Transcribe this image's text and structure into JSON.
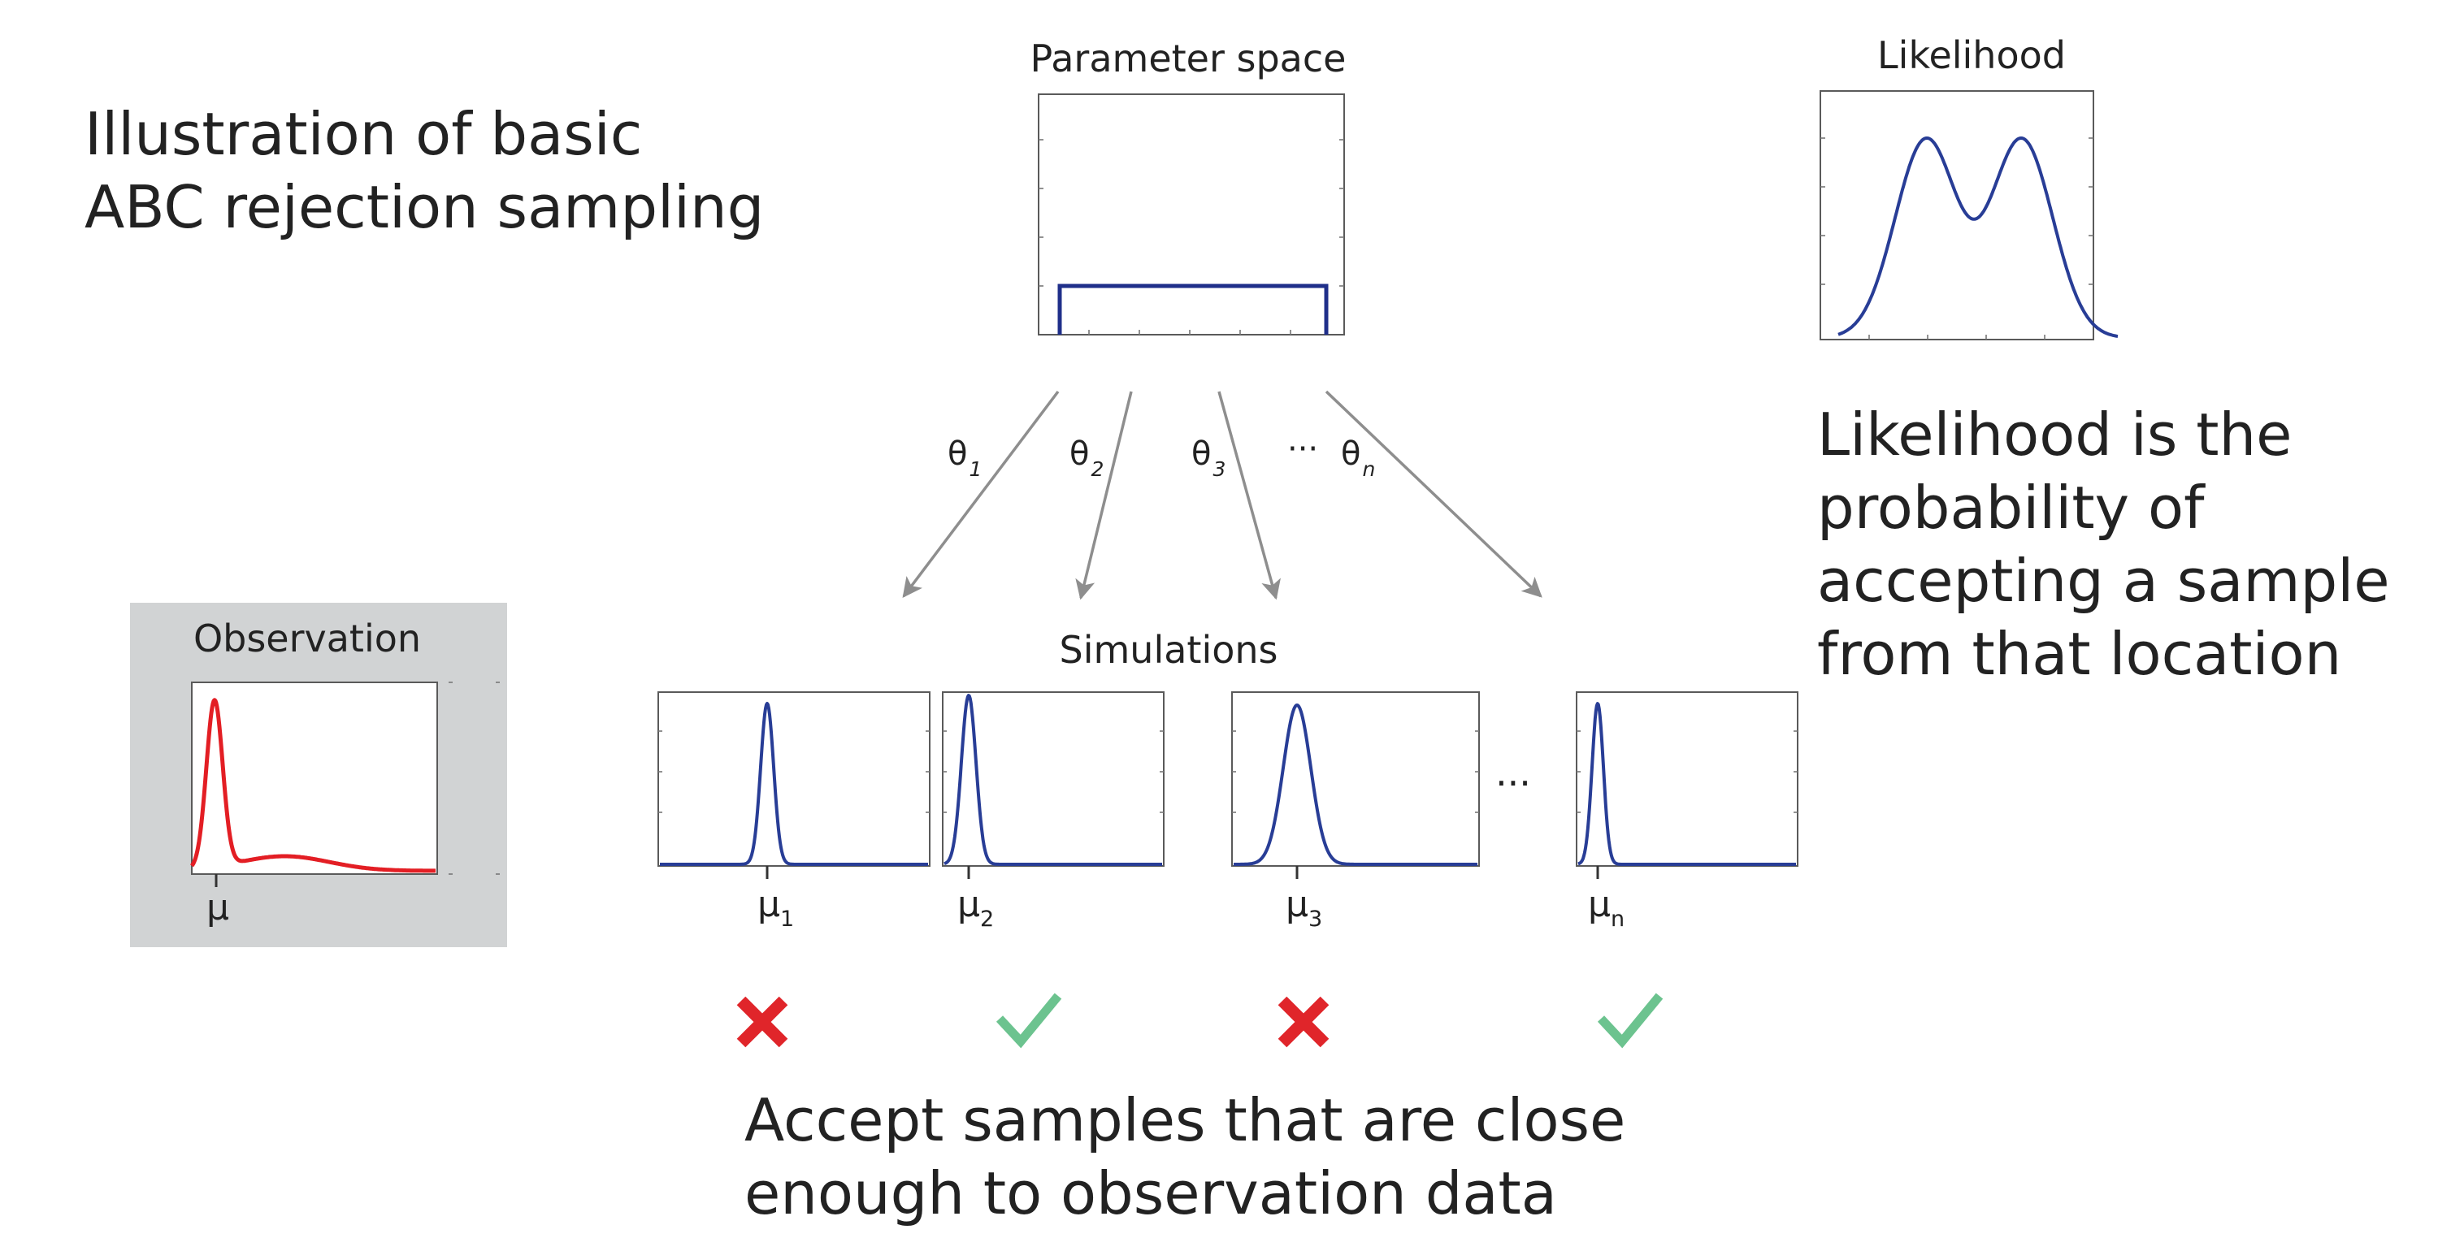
{
  "title": {
    "line1": "Illustration of basic",
    "line2": "ABC rejection sampling"
  },
  "parameter_space": {
    "label": "Parameter space"
  },
  "likelihood_panel": {
    "label": "Likelihood"
  },
  "likelihood_note": {
    "line1": "Likelihood is the",
    "line2": "probability of",
    "line3": "accepting a sample",
    "line4": "from that location"
  },
  "arrows": [
    {
      "symbol": "θ",
      "subscript": "1"
    },
    {
      "symbol": "θ",
      "subscript": "2"
    },
    {
      "symbol": "θ",
      "subscript": "3"
    },
    {
      "symbol": "θ",
      "subscript": "n"
    }
  ],
  "arrows_ellipsis": "···",
  "observation": {
    "label": "Observation",
    "mu": "μ",
    "panel_color": "#d1d3d4",
    "curve_color": "#e31e24"
  },
  "simulations": {
    "label": "Simulations",
    "ellipsis": "···",
    "curve_color": "#283d96",
    "panels": [
      {
        "mu": "μ",
        "subscript": "1",
        "result": "reject"
      },
      {
        "mu": "μ",
        "subscript": "2",
        "result": "accept"
      },
      {
        "mu": "μ",
        "subscript": "3",
        "result": "reject"
      },
      {
        "mu": "μ",
        "subscript": "n",
        "result": "accept"
      }
    ]
  },
  "result_icons": {
    "reject": "cross-icon",
    "accept": "check-icon",
    "reject_color": "#e0252a",
    "accept_color": "#6cc38f"
  },
  "conclusion": {
    "line1": "Accept samples that are close",
    "line2": "enough to observation data"
  }
}
